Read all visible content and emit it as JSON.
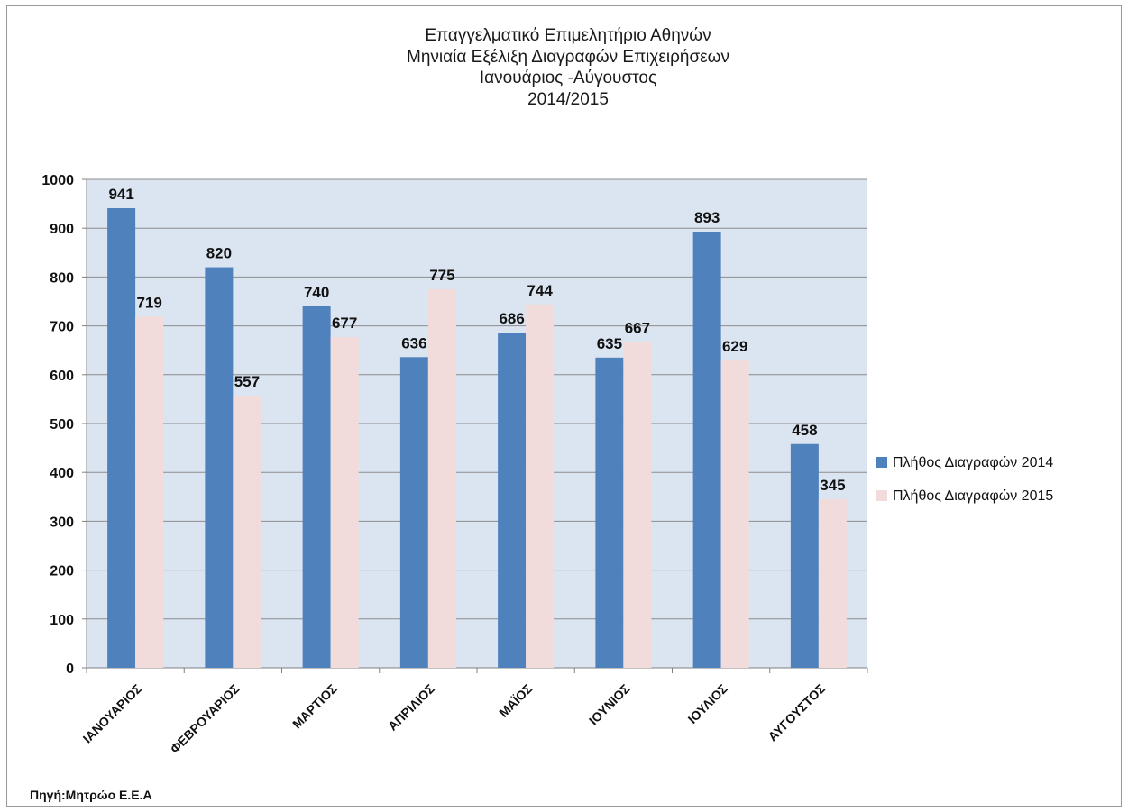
{
  "chart_data": {
    "type": "bar",
    "title": [
      "Επαγγελματικό Επιμελητήριο Αθηνών",
      "Μηνιαία Εξέλιξη Διαγραφών Επιχειρήσεων",
      "Ιανουάριος -Αύγουστος",
      "2014/2015"
    ],
    "categories": [
      "ΙΑΝΟΥΑΡΙΟΣ",
      "ΦΕΒΡΟΥΑΡΙΟΣ",
      "ΜΑΡΤΙΟΣ",
      "ΑΠΡΙΛΙΟΣ",
      "ΜΑΪΟΣ",
      "ΙΟΥΝΙΟΣ",
      "ΙΟΥΛΙΟΣ",
      "ΑΥΓΟΥΣΤΟΣ"
    ],
    "series": [
      {
        "name": "Πλήθος Διαγραφών  2014",
        "color": "#4f81bd",
        "values": [
          941,
          820,
          740,
          636,
          686,
          635,
          893,
          458
        ]
      },
      {
        "name": "Πλήθος Διαγραφών 2015",
        "color": "#f2dcdb",
        "values": [
          719,
          557,
          677,
          775,
          744,
          667,
          629,
          345
        ]
      }
    ],
    "ylim": [
      0,
      1000
    ],
    "yticks": [
      0,
      100,
      200,
      300,
      400,
      500,
      600,
      700,
      800,
      900,
      1000
    ],
    "grid": true,
    "legend": "right",
    "plot_background": "#dbe5f1",
    "xlabel": "",
    "ylabel": ""
  },
  "footer": {
    "source": "Πηγή:Μητρώο Ε.Ε.Α"
  }
}
